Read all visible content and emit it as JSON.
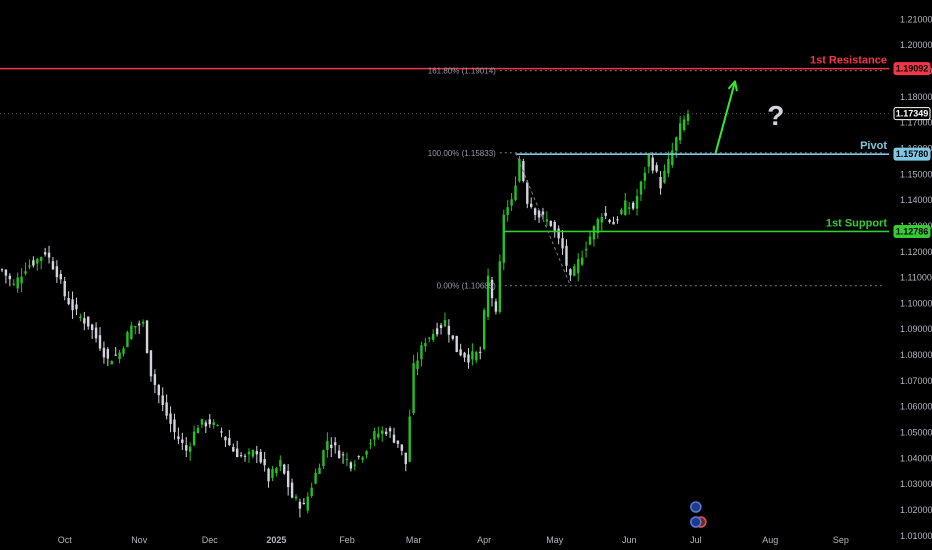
{
  "chart_data": {
    "type": "candlestick",
    "instrument": "",
    "y_axis": {
      "ticks": [
        1.21,
        1.2,
        1.19,
        1.18,
        1.17,
        1.16,
        1.15,
        1.14,
        1.13,
        1.12,
        1.11,
        1.1,
        1.09,
        1.08,
        1.07,
        1.06,
        1.05,
        1.04,
        1.03,
        1.02,
        1.01
      ],
      "tick_labels": [
        "1.21000",
        "1.20000",
        "1.19000",
        "1.18000",
        "1.17000",
        "1.16000",
        "1.15000",
        "1.14000",
        "1.13000",
        "1.12000",
        "1.11000",
        "1.10000",
        "1.09000",
        "1.08000",
        "1.07000",
        "1.06000",
        "1.05000",
        "1.04000",
        "1.03000",
        "1.02000",
        "1.01000"
      ],
      "range": [
        1.0045,
        1.2175
      ]
    },
    "x_axis": {
      "labels": [
        "Oct",
        "Nov",
        "Dec",
        "2025",
        "Feb",
        "Mar",
        "Apr",
        "May",
        "Jun",
        "Jul",
        "Aug",
        "Sep"
      ]
    },
    "levels": [
      {
        "name": "1st Resistance",
        "value": 1.19092,
        "value_label": "1.19092",
        "color": "#f23645"
      },
      {
        "name": "Pivot",
        "value": 1.1578,
        "value_label": "1.15780",
        "color": "#7ec8e3"
      },
      {
        "name": "1st Support",
        "value": 1.12786,
        "value_label": "1.12786",
        "color": "#33cc33"
      }
    ],
    "last_price": {
      "value": 1.17349,
      "label": "1.17349"
    },
    "fibonacci": [
      {
        "label": "161.80% (1.19014)",
        "value": 1.19014
      },
      {
        "label": "100.00% (1.15833)",
        "value": 1.15833
      },
      {
        "label": "0.00% (1.10685)",
        "value": 1.10685
      }
    ],
    "price_path": [
      {
        "bar": 0,
        "close": 1.113
      },
      {
        "bar": 3,
        "close": 1.107
      },
      {
        "bar": 6,
        "close": 1.114
      },
      {
        "bar": 9,
        "close": 1.117
      },
      {
        "bar": 11,
        "close": 1.12
      },
      {
        "bar": 14,
        "close": 1.112
      },
      {
        "bar": 16,
        "close": 1.103
      },
      {
        "bar": 19,
        "close": 1.096
      },
      {
        "bar": 22,
        "close": 1.092
      },
      {
        "bar": 25,
        "close": 1.084
      },
      {
        "bar": 27,
        "close": 1.078
      },
      {
        "bar": 30,
        "close": 1.081
      },
      {
        "bar": 33,
        "close": 1.091
      },
      {
        "bar": 36,
        "close": 1.092
      },
      {
        "bar": 38,
        "close": 1.073
      },
      {
        "bar": 41,
        "close": 1.06
      },
      {
        "bar": 44,
        "close": 1.05
      },
      {
        "bar": 47,
        "close": 1.043
      },
      {
        "bar": 50,
        "close": 1.053
      },
      {
        "bar": 53,
        "close": 1.054
      },
      {
        "bar": 56,
        "close": 1.05
      },
      {
        "bar": 59,
        "close": 1.043
      },
      {
        "bar": 62,
        "close": 1.04
      },
      {
        "bar": 65,
        "close": 1.043
      },
      {
        "bar": 68,
        "close": 1.032
      },
      {
        "bar": 71,
        "close": 1.038
      },
      {
        "bar": 74,
        "close": 1.025
      },
      {
        "bar": 77,
        "close": 1.021
      },
      {
        "bar": 80,
        "close": 1.034
      },
      {
        "bar": 83,
        "close": 1.047
      },
      {
        "bar": 86,
        "close": 1.042
      },
      {
        "bar": 89,
        "close": 1.038
      },
      {
        "bar": 92,
        "close": 1.042
      },
      {
        "bar": 95,
        "close": 1.049
      },
      {
        "bar": 98,
        "close": 1.051
      },
      {
        "bar": 101,
        "close": 1.046
      },
      {
        "bar": 103,
        "close": 1.038
      },
      {
        "bar": 105,
        "close": 1.075
      },
      {
        "bar": 108,
        "close": 1.086
      },
      {
        "bar": 111,
        "close": 1.09
      },
      {
        "bar": 113,
        "close": 1.093
      },
      {
        "bar": 116,
        "close": 1.082
      },
      {
        "bar": 119,
        "close": 1.079
      },
      {
        "bar": 122,
        "close": 1.081
      },
      {
        "bar": 124,
        "close": 1.11
      },
      {
        "bar": 126,
        "close": 1.095
      },
      {
        "bar": 128,
        "close": 1.135
      },
      {
        "bar": 130,
        "close": 1.139
      },
      {
        "bar": 132,
        "close": 1.156
      },
      {
        "bar": 134,
        "close": 1.14
      },
      {
        "bar": 137,
        "close": 1.134
      },
      {
        "bar": 140,
        "close": 1.131
      },
      {
        "bar": 143,
        "close": 1.121
      },
      {
        "bar": 145,
        "close": 1.109
      },
      {
        "bar": 147,
        "close": 1.116
      },
      {
        "bar": 150,
        "close": 1.126
      },
      {
        "bar": 153,
        "close": 1.135
      },
      {
        "bar": 156,
        "close": 1.131
      },
      {
        "bar": 159,
        "close": 1.138
      },
      {
        "bar": 161,
        "close": 1.137
      },
      {
        "bar": 163,
        "close": 1.146
      },
      {
        "bar": 165,
        "close": 1.157
      },
      {
        "bar": 168,
        "close": 1.146
      },
      {
        "bar": 171,
        "close": 1.159
      },
      {
        "bar": 173,
        "close": 1.168
      },
      {
        "bar": 175,
        "close": 1.17349
      }
    ],
    "total_bars": 176,
    "projection_arrow": {
      "from_value": 1.158,
      "to_value": 1.186
    },
    "annotation": "?",
    "colors": {
      "up": "#22c322",
      "down": "#d1d4dc",
      "background": "#000000",
      "axis_text": "#b2b5be"
    },
    "grid": false,
    "legend": "none"
  }
}
